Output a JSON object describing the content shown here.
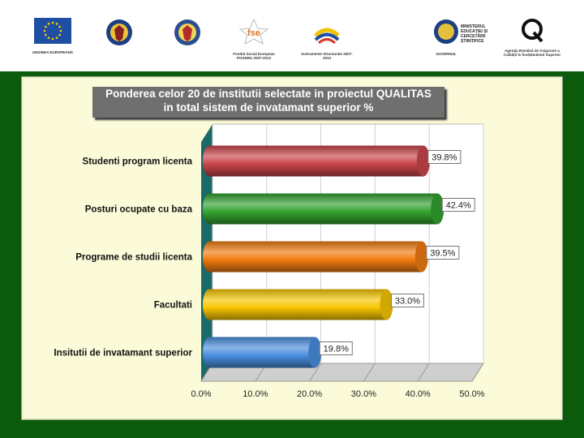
{
  "header": {
    "logos": [
      {
        "name": "eu-flag-icon",
        "caption": "UNIUNEA EUROPEANĂ"
      },
      {
        "name": "romania-crest-icon-1",
        "caption": ""
      },
      {
        "name": "romania-crest-icon-2",
        "caption": ""
      },
      {
        "name": "fse-logo-icon",
        "caption": "Fondul Social European POSDRU 2007-2013"
      },
      {
        "name": "structural-instruments-icon",
        "caption": "Instrumente Structurale 2007-2013"
      },
      {
        "name": "ministry-crest-icon",
        "caption": "GUVERNUL"
      },
      {
        "name": "ministry-text",
        "caption": "MINISTERUL EDUCAȚIEI ȘI CERCETĂRII ȘTIINȚIFICE"
      },
      {
        "name": "aracis-q-icon",
        "caption": "Agenția Română de Asigurare a Calității în Învățământul Superior"
      }
    ]
  },
  "chart_data": {
    "type": "bar",
    "orientation": "horizontal",
    "title": "Ponderea celor 20 de institutii selectate in proiectul QUALITAS in total sistem de invatamant superior  %",
    "title_line1": "Ponderea celor 20 de institutii selectate in proiectul QUALITAS",
    "title_line2": "in total sistem de invatamant superior  %",
    "categories": [
      "Studenti program licenta",
      "Posturi ocupate cu baza",
      "Programe de studii licenta",
      "Facultati",
      "Insitutii de invatamant superior"
    ],
    "values": [
      39.8,
      42.4,
      39.5,
      33.0,
      19.8
    ],
    "data_labels": [
      "39.8%",
      "42.4%",
      "39.5%",
      "33.0%",
      "19.8%"
    ],
    "colors": [
      "#c8454b",
      "#33a12f",
      "#f07a10",
      "#f7c600",
      "#4a8ede"
    ],
    "xlim": [
      0,
      50
    ],
    "ticks": [
      0,
      10,
      20,
      30,
      40,
      50
    ],
    "tick_labels": [
      "0.0%",
      "10.0%",
      "20.0%",
      "30.0%",
      "40.0%",
      "50.0%"
    ],
    "grid": true,
    "style": "3d-cylinder"
  }
}
